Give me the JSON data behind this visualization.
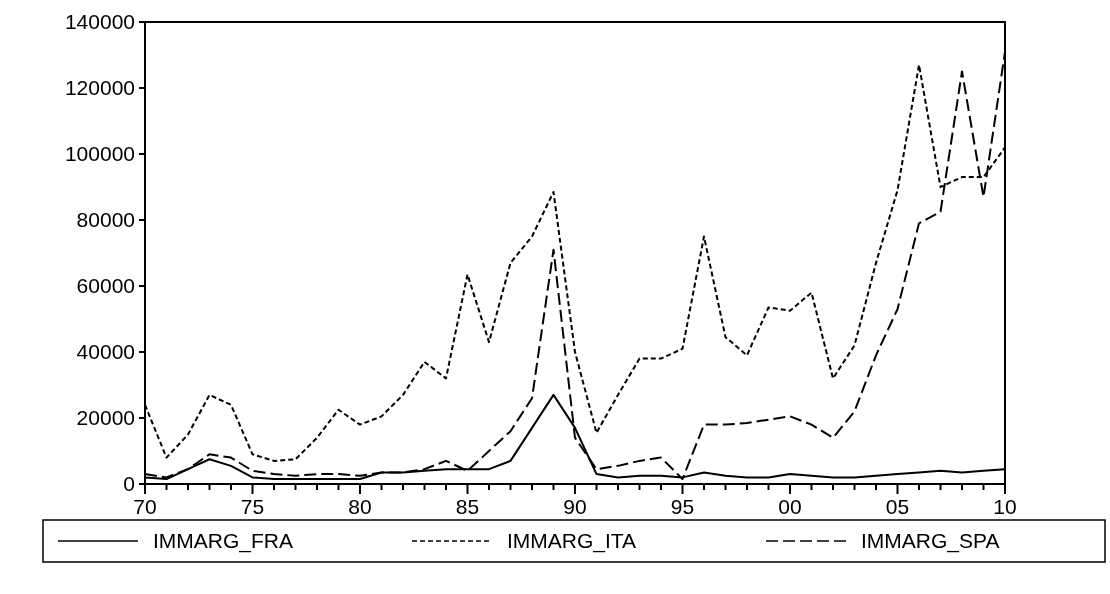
{
  "chart_data": {
    "type": "line",
    "x": [
      1970,
      1971,
      1972,
      1973,
      1974,
      1975,
      1976,
      1977,
      1978,
      1979,
      1980,
      1981,
      1982,
      1983,
      1984,
      1985,
      1986,
      1987,
      1988,
      1989,
      1990,
      1991,
      1992,
      1993,
      1994,
      1995,
      1996,
      1997,
      1998,
      1999,
      2000,
      2001,
      2002,
      2003,
      2004,
      2005,
      2006,
      2007,
      2008,
      2009,
      2010
    ],
    "series": [
      {
        "name": "IMMARG_FRA",
        "color": "#000000",
        "line_style": "solid",
        "values": [
          2000,
          1500,
          4500,
          7500,
          5500,
          2000,
          1500,
          1500,
          1500,
          1500,
          1500,
          3500,
          3500,
          4000,
          4500,
          4500,
          4500,
          7000,
          17000,
          27000,
          17000,
          3000,
          2000,
          2500,
          2500,
          2000,
          3500,
          2500,
          2000,
          2000,
          3000,
          2500,
          2000,
          2000,
          2500,
          3000,
          3500,
          4000,
          3500,
          4000,
          4500
        ]
      },
      {
        "name": "IMMARG_ITA",
        "color": "#000000",
        "line_style": "dotted",
        "values": [
          24000,
          8000,
          15000,
          27000,
          24000,
          9000,
          7000,
          7500,
          14000,
          22500,
          18000,
          20500,
          27000,
          37000,
          32000,
          63500,
          43000,
          67000,
          75000,
          88500,
          40000,
          15500,
          27000,
          38000,
          38000,
          41000,
          75000,
          44500,
          39000,
          53500,
          52500,
          58000,
          32000,
          42000,
          67000,
          89000,
          127000,
          90000,
          93000,
          93000,
          102000
        ]
      },
      {
        "name": "IMMARG_SPA",
        "color": "#000000",
        "line_style": "dashed",
        "values": [
          3000,
          2000,
          4500,
          9000,
          8000,
          4000,
          3000,
          2500,
          3000,
          3000,
          2500,
          3500,
          3500,
          4500,
          7000,
          4000,
          10000,
          16000,
          26000,
          71000,
          14000,
          4500,
          5500,
          7000,
          8000,
          1500,
          18000,
          18000,
          18500,
          19500,
          20500,
          18000,
          14000,
          22000,
          39000,
          53000,
          79000,
          82500,
          125000,
          87000,
          131000
        ]
      }
    ],
    "xlim": [
      1970,
      2010
    ],
    "xticks": [
      {
        "value": 1970,
        "label": "70"
      },
      {
        "value": 1971,
        "label": null
      },
      {
        "value": 1972,
        "label": null
      },
      {
        "value": 1973,
        "label": null
      },
      {
        "value": 1974,
        "label": null
      },
      {
        "value": 1975,
        "label": "75"
      },
      {
        "value": 1976,
        "label": null
      },
      {
        "value": 1977,
        "label": null
      },
      {
        "value": 1978,
        "label": null
      },
      {
        "value": 1979,
        "label": null
      },
      {
        "value": 1980,
        "label": "80"
      },
      {
        "value": 1981,
        "label": null
      },
      {
        "value": 1982,
        "label": null
      },
      {
        "value": 1983,
        "label": null
      },
      {
        "value": 1984,
        "label": null
      },
      {
        "value": 1985,
        "label": "85"
      },
      {
        "value": 1986,
        "label": null
      },
      {
        "value": 1987,
        "label": null
      },
      {
        "value": 1988,
        "label": null
      },
      {
        "value": 1989,
        "label": null
      },
      {
        "value": 1990,
        "label": "90"
      },
      {
        "value": 1991,
        "label": null
      },
      {
        "value": 1992,
        "label": null
      },
      {
        "value": 1993,
        "label": null
      },
      {
        "value": 1994,
        "label": null
      },
      {
        "value": 1995,
        "label": "95"
      },
      {
        "value": 1996,
        "label": null
      },
      {
        "value": 1997,
        "label": null
      },
      {
        "value": 1998,
        "label": null
      },
      {
        "value": 1999,
        "label": null
      },
      {
        "value": 2000,
        "label": "00"
      },
      {
        "value": 2001,
        "label": null
      },
      {
        "value": 2002,
        "label": null
      },
      {
        "value": 2003,
        "label": null
      },
      {
        "value": 2004,
        "label": null
      },
      {
        "value": 2005,
        "label": "05"
      },
      {
        "value": 2006,
        "label": null
      },
      {
        "value": 2007,
        "label": null
      },
      {
        "value": 2008,
        "label": null
      },
      {
        "value": 2009,
        "label": null
      },
      {
        "value": 2010,
        "label": "10"
      }
    ],
    "ylim": [
      0,
      140000
    ],
    "yticks": [
      0,
      20000,
      40000,
      60000,
      80000,
      100000,
      120000,
      140000
    ],
    "grid": false,
    "legend": "bottom"
  }
}
